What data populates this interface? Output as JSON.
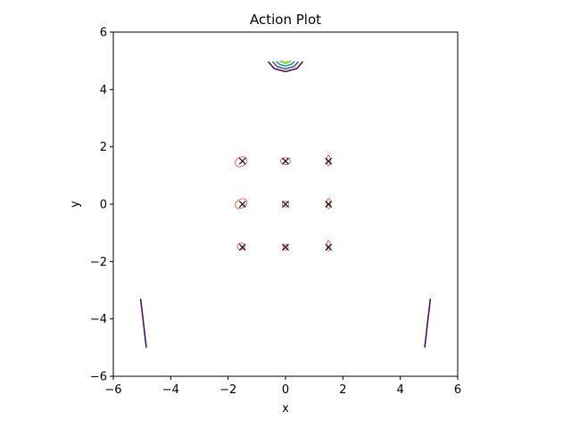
{
  "chart_data": {
    "type": "scatter",
    "title": "Action Plot",
    "xlabel": "x",
    "ylabel": "y",
    "xlim": [
      -6,
      6
    ],
    "ylim": [
      -6,
      6
    ],
    "x_ticks": [
      -6,
      -4,
      -2,
      0,
      2,
      4,
      6
    ],
    "y_ticks": [
      -6,
      -4,
      -2,
      0,
      2,
      4,
      6
    ],
    "x_tick_labels": [
      "−6",
      "−4",
      "−2",
      "0",
      "2",
      "4",
      "6"
    ],
    "y_tick_labels": [
      "−6",
      "−4",
      "−2",
      "0",
      "2",
      "4",
      "6"
    ],
    "grid": false,
    "markers": [
      {
        "x": -1.5,
        "y": 1.5
      },
      {
        "x": 0,
        "y": 1.5
      },
      {
        "x": 1.5,
        "y": 1.5
      },
      {
        "x": -1.5,
        "y": 0
      },
      {
        "x": 0,
        "y": 0
      },
      {
        "x": 1.5,
        "y": 0
      },
      {
        "x": -1.5,
        "y": -1.5
      },
      {
        "x": 0,
        "y": -1.5
      },
      {
        "x": 1.5,
        "y": -1.5
      }
    ],
    "ellipses": [
      {
        "cx": -1.55,
        "cy": 1.48,
        "rx": 0.22,
        "ry": 0.16,
        "angle": -30
      },
      {
        "cx": 0,
        "cy": 1.5,
        "rx": 0.17,
        "ry": 0.12,
        "angle": 0
      },
      {
        "cx": 1.5,
        "cy": 1.52,
        "rx": 0.07,
        "ry": 0.18,
        "angle": 0
      },
      {
        "cx": -1.55,
        "cy": 0.02,
        "rx": 0.22,
        "ry": 0.15,
        "angle": -30
      },
      {
        "cx": 0,
        "cy": 0,
        "rx": 0.12,
        "ry": 0.1,
        "angle": 0
      },
      {
        "cx": 1.5,
        "cy": 0.02,
        "rx": 0.07,
        "ry": 0.18,
        "angle": 0
      },
      {
        "cx": -1.55,
        "cy": -1.47,
        "rx": 0.13,
        "ry": 0.12,
        "angle": 0
      },
      {
        "cx": 0,
        "cy": -1.5,
        "rx": 0.09,
        "ry": 0.1,
        "angle": 0
      },
      {
        "cx": 1.5,
        "cy": -1.45,
        "rx": 0.06,
        "ry": 0.18,
        "angle": 0
      }
    ],
    "contours": [
      {
        "color": "#440154",
        "points": [
          [
            -0.6,
            4.97
          ],
          [
            -0.4,
            4.73
          ],
          [
            0,
            4.62
          ],
          [
            0.4,
            4.73
          ],
          [
            0.6,
            4.97
          ]
        ]
      },
      {
        "color": "#3b528b",
        "points": [
          [
            -0.45,
            4.97
          ],
          [
            -0.3,
            4.8
          ],
          [
            0,
            4.72
          ],
          [
            0.3,
            4.8
          ],
          [
            0.45,
            4.97
          ]
        ]
      },
      {
        "color": "#21908d",
        "points": [
          [
            -0.32,
            4.98
          ],
          [
            -0.2,
            4.87
          ],
          [
            0,
            4.82
          ],
          [
            0.2,
            4.87
          ],
          [
            0.32,
            4.98
          ]
        ]
      },
      {
        "color": "#5dc963",
        "points": [
          [
            -0.2,
            4.99
          ],
          [
            0,
            4.91
          ],
          [
            0.2,
            4.99
          ]
        ]
      },
      {
        "color": "#fde725",
        "points": [
          [
            -0.08,
            5.0
          ],
          [
            0,
            4.97
          ],
          [
            0.08,
            5.0
          ]
        ]
      },
      {
        "color": "#440154",
        "points": [
          [
            -5.05,
            -3.3
          ],
          [
            -4.85,
            -5.0
          ]
        ]
      },
      {
        "color": "#440154",
        "points": [
          [
            5.05,
            -3.3
          ],
          [
            4.85,
            -5.0
          ]
        ]
      }
    ],
    "colors": {
      "marker": "#000000",
      "ellipse": "#e8675e"
    }
  }
}
